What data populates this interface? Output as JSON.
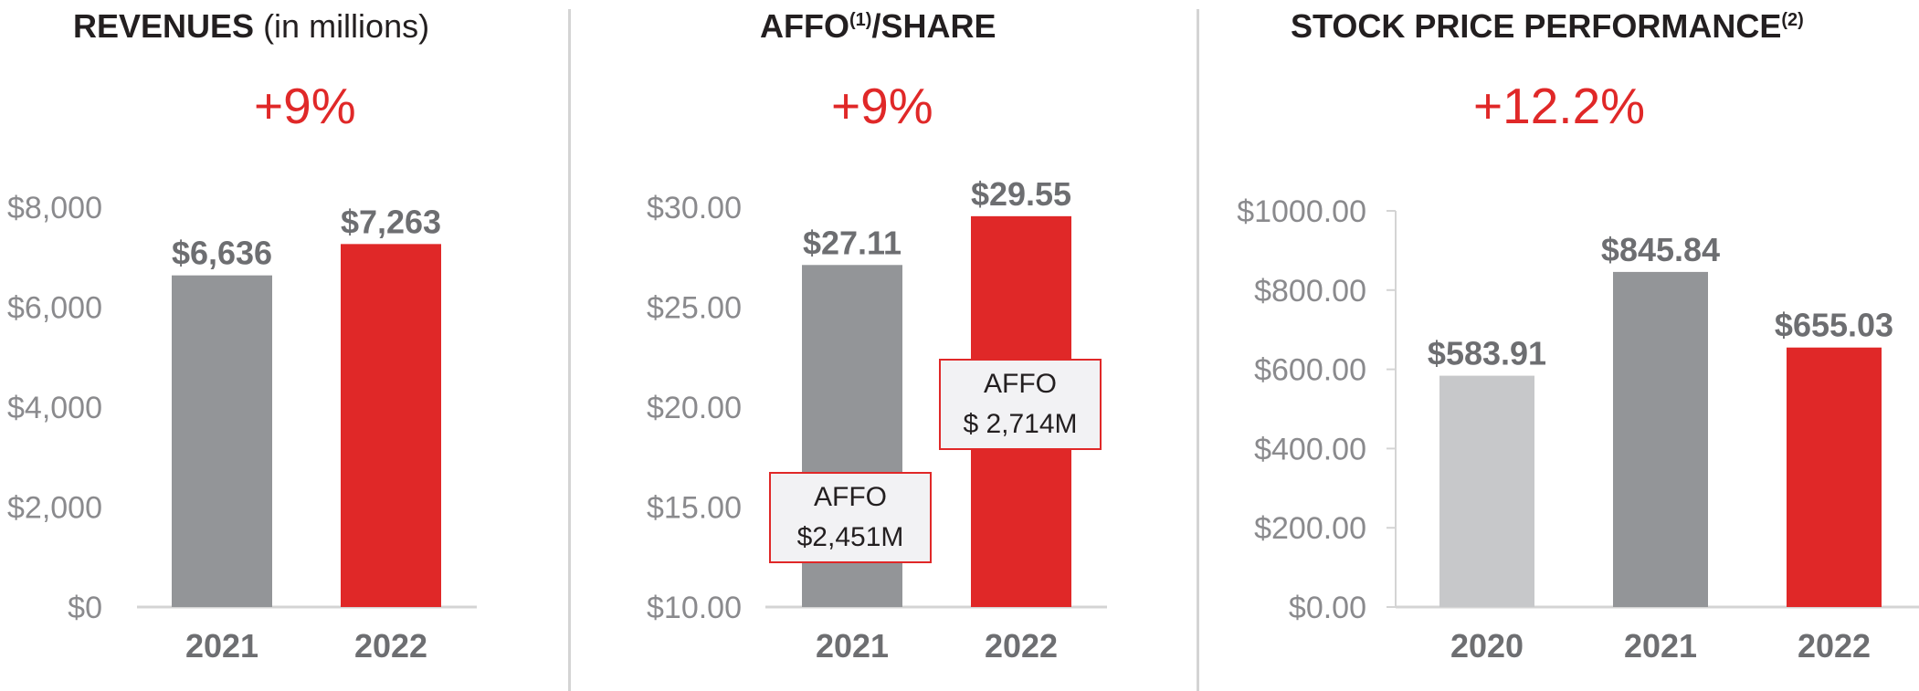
{
  "colors": {
    "gray": "#939598",
    "light_gray": "#c7c8ca",
    "red": "#e02828",
    "axis": "#d4d4d4"
  },
  "panels": [
    {
      "title_bold": "REVENUES",
      "title_light": " (in millions)",
      "title_sup": "",
      "title_tail": "",
      "change": "+9%"
    },
    {
      "title_bold": "AFFO",
      "title_light": "",
      "title_sup": "(1)",
      "title_tail": "/SHARE",
      "change": "+9%",
      "callouts": [
        {
          "line1": "AFFO",
          "line2": "$2,451M"
        },
        {
          "line1": "AFFO",
          "line2": "$ 2,714M"
        }
      ]
    },
    {
      "title_bold": "STOCK PRICE PERFORMANCE",
      "title_light": "",
      "title_sup": "(2)",
      "title_tail": "",
      "change": "+12.2%"
    }
  ],
  "chart_data": [
    {
      "type": "bar",
      "title": "REVENUES (in millions)",
      "categories": [
        "2021",
        "2022"
      ],
      "values": [
        6636,
        7263
      ],
      "value_labels": [
        "$6,636",
        "$7,263"
      ],
      "bar_colors": [
        "#939598",
        "#e02828"
      ],
      "ylim": [
        0,
        8000
      ],
      "yticks": [
        0,
        2000,
        4000,
        6000,
        8000
      ],
      "ytick_labels": [
        "$0",
        "$2,000",
        "$4,000",
        "$6,000",
        "$8,000"
      ]
    },
    {
      "type": "bar",
      "title": "AFFO(1)/SHARE",
      "categories": [
        "2021",
        "2022"
      ],
      "values": [
        27.11,
        29.55
      ],
      "value_labels": [
        "$27.11",
        "$29.55"
      ],
      "bar_colors": [
        "#939598",
        "#e02828"
      ],
      "ylim": [
        10,
        30
      ],
      "yticks": [
        10,
        15,
        20,
        25,
        30
      ],
      "ytick_labels": [
        "$10.00",
        "$15.00",
        "$20.00",
        "$25.00",
        "$30.00"
      ]
    },
    {
      "type": "bar",
      "title": "STOCK PRICE PERFORMANCE(2)",
      "categories": [
        "2020",
        "2021",
        "2022"
      ],
      "values": [
        583.91,
        845.84,
        655.03
      ],
      "value_labels": [
        "$583.91",
        "$845.84",
        "$655.03"
      ],
      "bar_colors": [
        "#c7c8ca",
        "#939598",
        "#e02828"
      ],
      "ylim": [
        0,
        1000
      ],
      "yticks": [
        0,
        200,
        400,
        600,
        800,
        1000
      ],
      "ytick_labels": [
        "$0.00",
        "$200.00",
        "$400.00",
        "$600.00",
        "$800.00",
        "$1000.00"
      ]
    }
  ]
}
